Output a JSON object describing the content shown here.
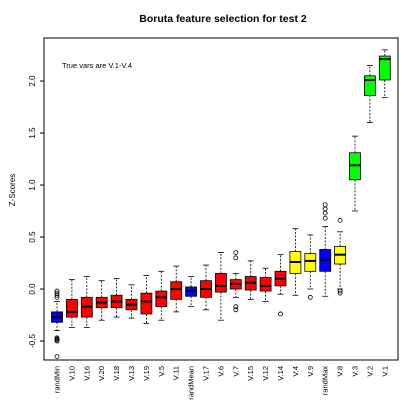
{
  "chart_data": {
    "type": "boxplot",
    "title": "Boruta feature selection for test 2",
    "ylabel": "Z-Scores",
    "xlabel": "",
    "annotation": "True vars are V.1-V.4",
    "ylim": [
      -0.62,
      2.4
    ],
    "yticks": [
      -0.5,
      0.0,
      0.5,
      1.0,
      1.5,
      2.0
    ],
    "ytick_labels": [
      "-0.5",
      "0.0",
      "0.5",
      "1.0",
      "1.5",
      "2.0"
    ],
    "grid": false,
    "legend": "none",
    "colors": {
      "shadow": "#0000ff",
      "rejected": "#ff0000",
      "tentative": "#ffff00",
      "confirmed": "#00ff00"
    },
    "categories": [
      "randMin",
      "V.10",
      "V.16",
      "V.20",
      "V.18",
      "V.13",
      "V.19",
      "V.5",
      "V.11",
      "randMean",
      "V.17",
      "V.6",
      "V.7",
      "V.15",
      "V.12",
      "V.14",
      "V.4",
      "V.9",
      "randMax",
      "V.8",
      "V.3",
      "V.2",
      "V.1"
    ],
    "decisions": [
      "shadow",
      "rejected",
      "rejected",
      "rejected",
      "rejected",
      "rejected",
      "rejected",
      "rejected",
      "rejected",
      "shadow",
      "rejected",
      "rejected",
      "rejected",
      "rejected",
      "rejected",
      "rejected",
      "tentative",
      "tentative",
      "shadow",
      "tentative",
      "confirmed",
      "confirmed",
      "confirmed"
    ],
    "boxes": [
      {
        "min": -0.4,
        "q1": -0.32,
        "median": -0.27,
        "q3": -0.22,
        "max": -0.12,
        "outliers": [
          -0.02,
          -0.04,
          -0.06,
          -0.08,
          -0.47,
          -0.48,
          -0.49,
          -0.5,
          -0.65
        ]
      },
      {
        "min": -0.37,
        "q1": -0.27,
        "median": -0.22,
        "q3": -0.1,
        "max": 0.09,
        "outliers": []
      },
      {
        "min": -0.37,
        "q1": -0.27,
        "median": -0.17,
        "q3": -0.08,
        "max": 0.12,
        "outliers": []
      },
      {
        "min": -0.3,
        "q1": -0.18,
        "median": -0.13,
        "q3": -0.08,
        "max": 0.08,
        "outliers": []
      },
      {
        "min": -0.27,
        "q1": -0.18,
        "median": -0.12,
        "q3": -0.06,
        "max": 0.1,
        "outliers": []
      },
      {
        "min": -0.28,
        "q1": -0.2,
        "median": -0.15,
        "q3": -0.1,
        "max": 0.04,
        "outliers": []
      },
      {
        "min": -0.33,
        "q1": -0.24,
        "median": -0.12,
        "q3": -0.04,
        "max": 0.13,
        "outliers": []
      },
      {
        "min": -0.3,
        "q1": -0.17,
        "median": -0.08,
        "q3": -0.02,
        "max": 0.17,
        "outliers": []
      },
      {
        "min": -0.22,
        "q1": -0.1,
        "median": 0.0,
        "q3": 0.07,
        "max": 0.22,
        "outliers": []
      },
      {
        "min": -0.17,
        "q1": -0.07,
        "median": -0.02,
        "q3": 0.02,
        "max": 0.12,
        "outliers": []
      },
      {
        "min": -0.2,
        "q1": -0.08,
        "median": 0.0,
        "q3": 0.08,
        "max": 0.23,
        "outliers": []
      },
      {
        "min": -0.3,
        "q1": -0.03,
        "median": 0.03,
        "q3": 0.15,
        "max": 0.35,
        "outliers": []
      },
      {
        "min": -0.08,
        "q1": 0.0,
        "median": 0.05,
        "q3": 0.09,
        "max": 0.15,
        "outliers": [
          0.35,
          0.3,
          -0.17,
          -0.2
        ]
      },
      {
        "min": -0.1,
        "q1": -0.01,
        "median": 0.06,
        "q3": 0.12,
        "max": 0.27,
        "outliers": []
      },
      {
        "min": -0.12,
        "q1": -0.02,
        "median": 0.03,
        "q3": 0.11,
        "max": 0.2,
        "outliers": []
      },
      {
        "min": -0.05,
        "q1": 0.03,
        "median": 0.1,
        "q3": 0.17,
        "max": 0.33,
        "outliers": [
          -0.24
        ]
      },
      {
        "min": -0.06,
        "q1": 0.15,
        "median": 0.26,
        "q3": 0.36,
        "max": 0.58,
        "outliers": []
      },
      {
        "min": 0.0,
        "q1": 0.17,
        "median": 0.27,
        "q3": 0.34,
        "max": 0.52,
        "outliers": [
          -0.08
        ]
      },
      {
        "min": -0.07,
        "q1": 0.17,
        "median": 0.28,
        "q3": 0.38,
        "max": 0.6,
        "outliers": [
          0.68,
          0.73,
          0.77,
          0.81
        ]
      },
      {
        "min": 0.0,
        "q1": 0.24,
        "median": 0.33,
        "q3": 0.41,
        "max": 0.55,
        "outliers": [
          0.66,
          -0.02,
          -0.04
        ]
      },
      {
        "min": 0.75,
        "q1": 1.05,
        "median": 1.19,
        "q3": 1.31,
        "max": 1.47,
        "outliers": []
      },
      {
        "min": 1.6,
        "q1": 1.86,
        "median": 2.01,
        "q3": 2.05,
        "max": 2.15,
        "outliers": []
      },
      {
        "min": 1.84,
        "q1": 2.01,
        "median": 2.21,
        "q3": 2.24,
        "max": 2.3,
        "outliers": []
      }
    ]
  }
}
